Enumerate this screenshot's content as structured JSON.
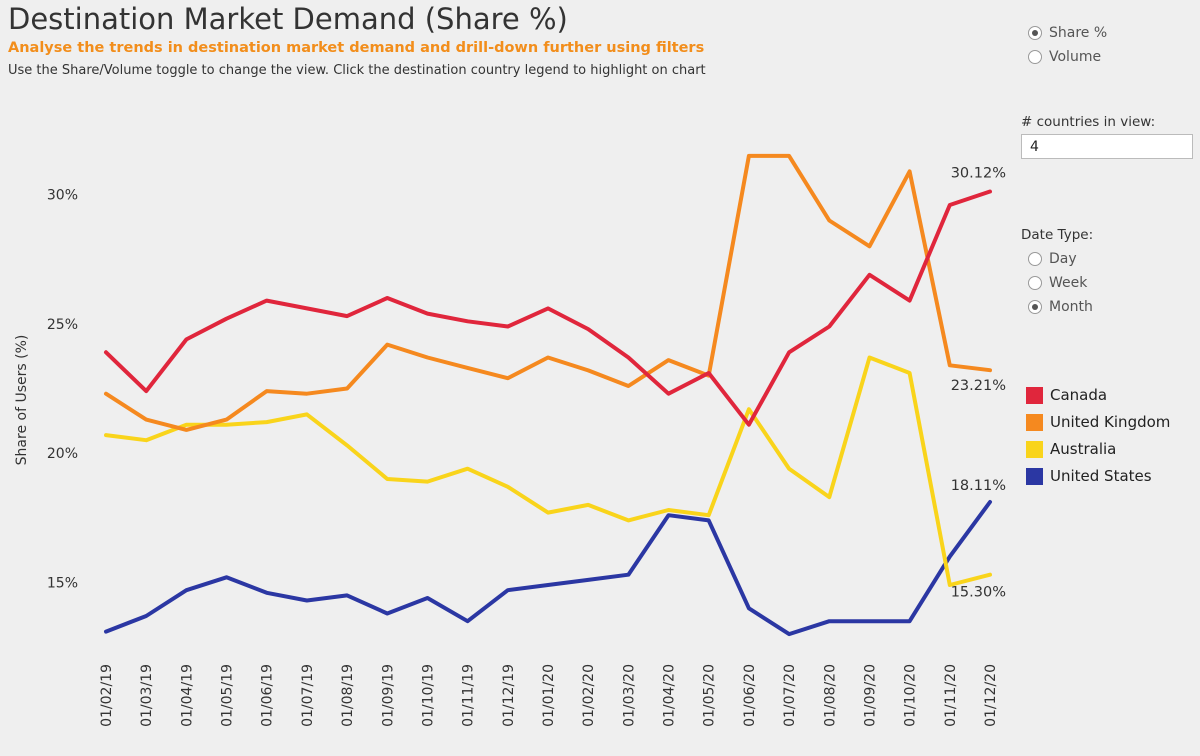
{
  "header": {
    "title": "Destination Market Demand (Share %)",
    "subtitle": "Analyse the trends in destination market demand and drill-down further using filters",
    "description": "Use the Share/Volume toggle to change the view. Click the destination country legend to highlight on chart"
  },
  "controls": {
    "view_toggle": {
      "options": [
        "Share %",
        "Volume"
      ],
      "selected": "Share %"
    },
    "countries_label": "# countries in view:",
    "countries_value": "4",
    "date_type_label": "Date Type:",
    "date_type": {
      "options": [
        "Day",
        "Week",
        "Month"
      ],
      "selected": "Month"
    }
  },
  "legend": [
    {
      "name": "Canada",
      "color": "#e0263c"
    },
    {
      "name": "United Kingdom",
      "color": "#f5891f"
    },
    {
      "name": "Australia",
      "color": "#f9d41b"
    },
    {
      "name": "United States",
      "color": "#2b37a3"
    }
  ],
  "chart_data": {
    "type": "line",
    "title": "Destination Market Demand (Share %)",
    "ylabel": "Share of Users (%)",
    "xlabel": "",
    "ylim": [
      12,
      32.5
    ],
    "yticks": [
      15,
      20,
      25,
      30
    ],
    "ytick_labels": [
      "15%",
      "20%",
      "25%",
      "30%"
    ],
    "grid": false,
    "legend_position": "right",
    "x": [
      "01/02/19",
      "01/03/19",
      "01/04/19",
      "01/05/19",
      "01/06/19",
      "01/07/19",
      "01/08/19",
      "01/09/19",
      "01/10/19",
      "01/11/19",
      "01/12/19",
      "01/01/20",
      "01/02/20",
      "01/03/20",
      "01/04/20",
      "01/05/20",
      "01/06/20",
      "01/07/20",
      "01/08/20",
      "01/09/20",
      "01/10/20",
      "01/11/20",
      "01/12/20"
    ],
    "series": [
      {
        "name": "Canada",
        "color": "#e0263c",
        "values": [
          23.9,
          22.4,
          24.4,
          25.2,
          25.9,
          25.6,
          25.3,
          26.0,
          25.4,
          25.1,
          24.9,
          25.6,
          24.8,
          23.7,
          22.3,
          23.1,
          21.1,
          23.9,
          24.9,
          26.9,
          25.9,
          29.6,
          30.12
        ],
        "end_label": "30.12%"
      },
      {
        "name": "United Kingdom",
        "color": "#f5891f",
        "values": [
          22.3,
          21.3,
          20.9,
          21.3,
          22.4,
          22.3,
          22.5,
          24.2,
          23.7,
          23.3,
          22.9,
          23.7,
          23.2,
          22.6,
          23.6,
          23.0,
          31.5,
          31.5,
          29.0,
          28.0,
          30.9,
          23.4,
          23.21
        ],
        "end_label": "23.21%"
      },
      {
        "name": "Australia",
        "color": "#f9d41b",
        "values": [
          20.7,
          20.5,
          21.1,
          21.1,
          21.2,
          21.5,
          20.3,
          19.0,
          18.9,
          19.4,
          18.7,
          17.7,
          18.0,
          17.4,
          17.8,
          17.6,
          21.7,
          19.4,
          18.3,
          23.7,
          23.1,
          14.9,
          15.3
        ],
        "end_label": "15.30%"
      },
      {
        "name": "United States",
        "color": "#2b37a3",
        "values": [
          13.1,
          13.7,
          14.7,
          15.2,
          14.6,
          14.3,
          14.5,
          13.8,
          14.4,
          13.5,
          14.7,
          14.9,
          15.1,
          15.3,
          17.6,
          17.4,
          14.0,
          13.0,
          13.5,
          13.5,
          13.5,
          16.0,
          18.11
        ],
        "end_label": "18.11%"
      }
    ]
  }
}
